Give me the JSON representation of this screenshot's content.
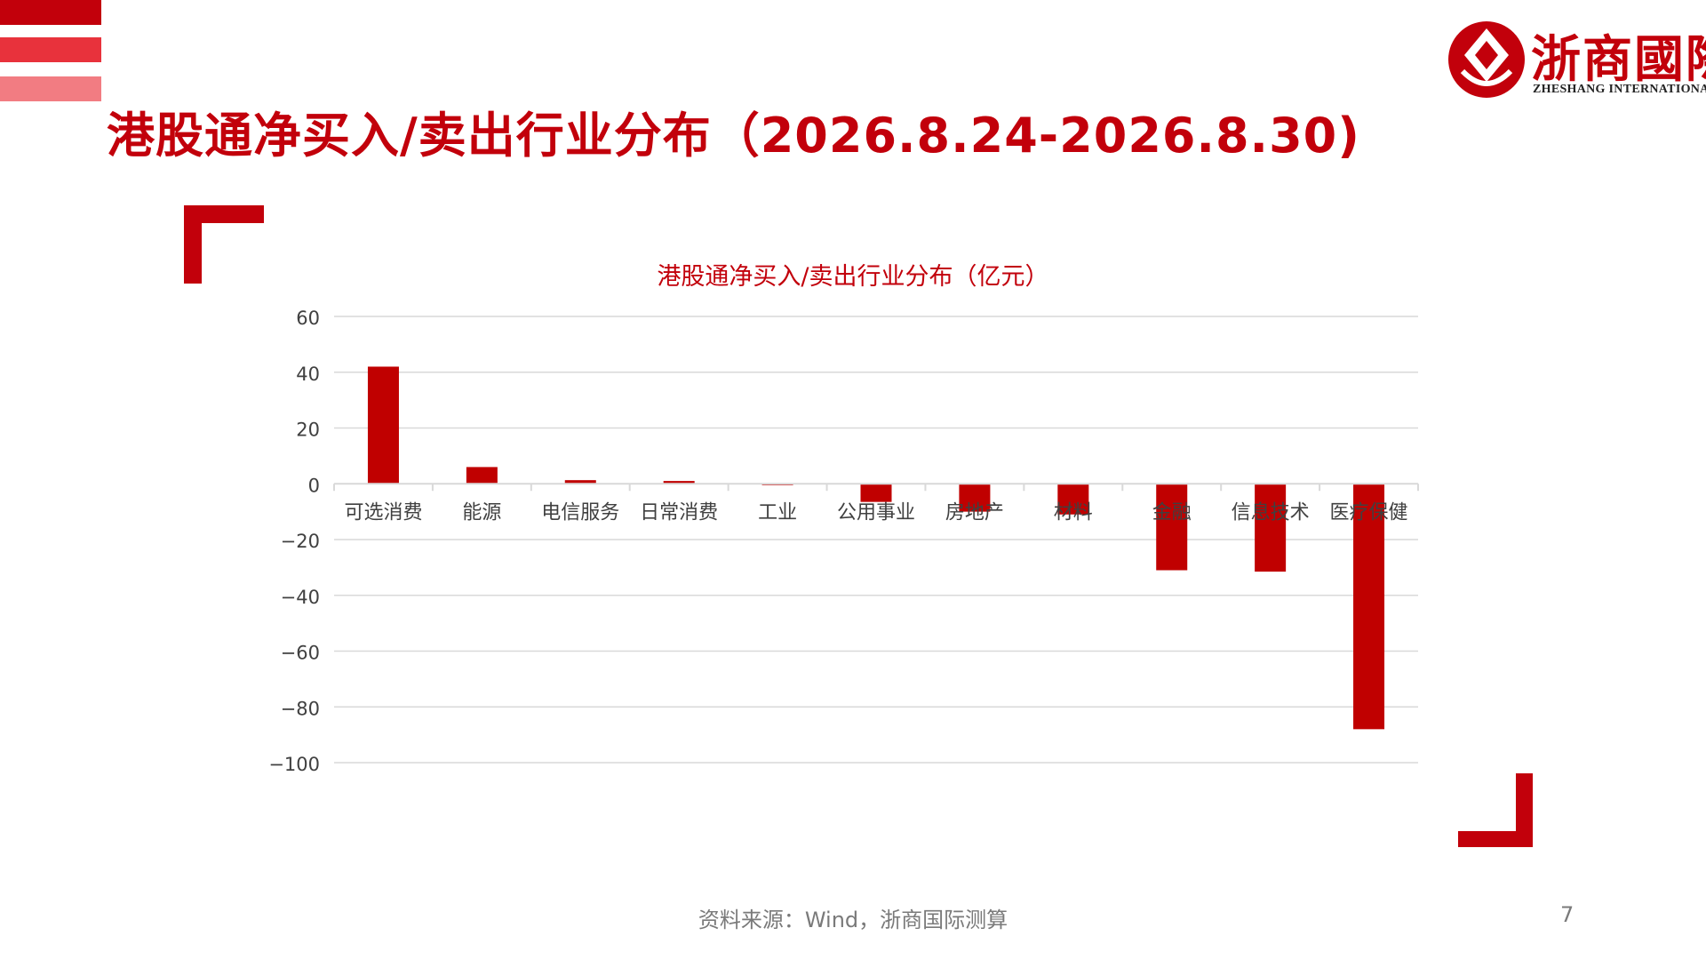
{
  "slide": {
    "title": "港股通净买入/卖出行业分布（2026.8.24-2026.8.30)",
    "source": "资料来源：Wind，浙商国际测算",
    "page_number": "7"
  },
  "logo": {
    "brand": "浙商國際",
    "sub": "ZHESHANG INTERNATIONAL"
  },
  "colors": {
    "accent": "#c2000b",
    "bar": "#c00000",
    "grid": "#d9d9d9",
    "axis_text": "#404040",
    "title_text": "#c2000b"
  },
  "chart_data": {
    "type": "bar",
    "title": "港股通净买入/卖出行业分布（亿元）",
    "categories": [
      "可选消费",
      "能源",
      "电信服务",
      "日常消费",
      "工业",
      "公用事业",
      "房地产",
      "材料",
      "金融",
      "信息技术",
      "医疗保健"
    ],
    "values": [
      42,
      6,
      1.3,
      1,
      -0.5,
      -6.5,
      -10,
      -11,
      -31,
      -31.5,
      -88
    ],
    "ylim": [
      -100,
      60
    ],
    "yticks": [
      60,
      40,
      20,
      0,
      -20,
      -40,
      -60,
      -80,
      -100
    ],
    "ytick_labels": [
      "60",
      "40",
      "20",
      "0",
      "−20",
      "−40",
      "−60",
      "−80",
      "−100"
    ],
    "grid": true,
    "legend": "none"
  }
}
